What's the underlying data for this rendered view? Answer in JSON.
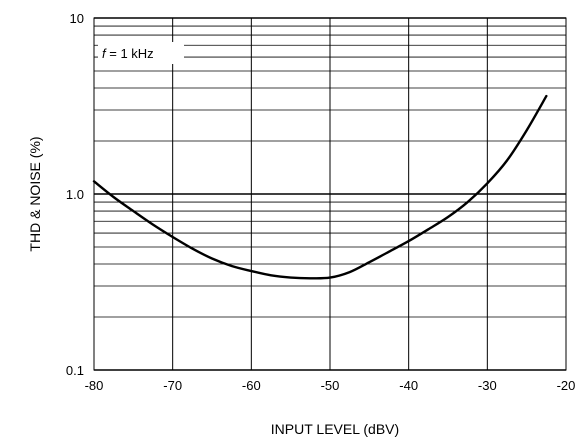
{
  "chart_data": {
    "type": "line",
    "title": "",
    "xlabel": "INPUT LEVEL (dBV)",
    "ylabel": "THD & NOISE (%)",
    "xlim": [
      -80,
      -20
    ],
    "ylim": [
      0.1,
      10
    ],
    "yscale": "log",
    "grid": true,
    "xticks": [
      -80,
      -70,
      -60,
      -50,
      -40,
      -30,
      -20
    ],
    "xtick_labels": [
      "-80",
      "-70",
      "-60",
      "-50",
      "-40",
      "-30",
      "-20"
    ],
    "yticks": [
      0.1,
      1.0,
      10
    ],
    "ytick_labels": [
      "0.1",
      "1.0",
      "10"
    ],
    "annotation": {
      "italic": "f",
      "text": " = 1 kHz"
    },
    "series": [
      {
        "x": [
          -80,
          -77.5,
          -75,
          -72.5,
          -70,
          -67.5,
          -65,
          -62.5,
          -60,
          -57.5,
          -55,
          -52.5,
          -50,
          -47.5,
          -45,
          -42.5,
          -40,
          -37.5,
          -35,
          -32.5,
          -30,
          -27.5,
          -25,
          -22.5
        ],
        "y": [
          1.18,
          0.96,
          0.8,
          0.67,
          0.57,
          0.49,
          0.43,
          0.39,
          0.365,
          0.345,
          0.335,
          0.332,
          0.335,
          0.36,
          0.41,
          0.47,
          0.54,
          0.63,
          0.74,
          0.9,
          1.15,
          1.55,
          2.3,
          3.6
        ]
      }
    ]
  }
}
